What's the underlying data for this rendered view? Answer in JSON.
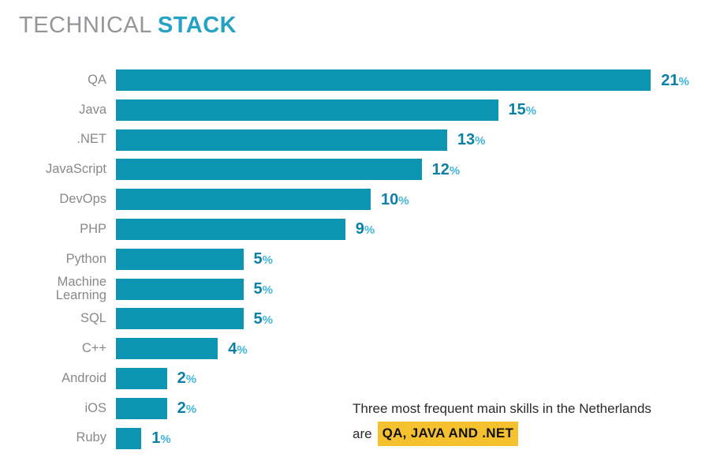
{
  "title": {
    "regular": "TECHNICAL",
    "accent": "STACK"
  },
  "chart_data": {
    "type": "bar",
    "orientation": "horizontal",
    "title": "TECHNICAL STACK",
    "categories": [
      "QA",
      "Java",
      ".NET",
      "JavaScript",
      "DevOps",
      "PHP",
      "Python",
      "Machine\nLearning",
      "SQL",
      "C++",
      "Android",
      "iOS",
      "Ruby"
    ],
    "values": [
      21,
      15,
      13,
      12,
      10,
      9,
      5,
      5,
      5,
      4,
      2,
      2,
      1
    ],
    "unit": "%",
    "xlim": [
      0,
      23
    ],
    "value_labels_shown": true,
    "grid": false,
    "legend": false,
    "bar_color": "#0b95b3",
    "value_color": "#0d80a4",
    "unit_color": "#41b6d8",
    "label_color": "#87898b",
    "title_regular_color": "#949699",
    "title_accent_color": "#24a3c4"
  },
  "annotation": {
    "line1": "Three most frequent main skills in the Netherlands",
    "line2_prefix": "are",
    "highlight": "QA, JAVA AND .NET",
    "highlight_color": "#f5c12f"
  }
}
